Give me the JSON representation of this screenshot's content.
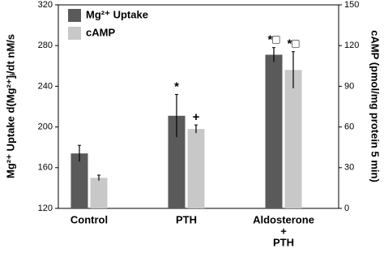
{
  "chart_data": {
    "type": "bar",
    "categories": [
      [
        "Control"
      ],
      [
        "PTH"
      ],
      [
        "Aldosterone",
        "+",
        "PTH"
      ]
    ],
    "series": [
      {
        "name": "Mg²⁺ Uptake",
        "color": "#5a5a5a",
        "axis": "y",
        "values": [
          174,
          211,
          271
        ],
        "errors": [
          8,
          21,
          7
        ],
        "annotations": [
          null,
          "*",
          "*□"
        ]
      },
      {
        "name": "cAMP",
        "color": "#c8c8c8",
        "axis": "y2",
        "values": [
          22.5,
          58.5,
          102
        ],
        "errors": [
          2,
          3,
          13.5
        ],
        "annotations": [
          null,
          "+",
          "*□"
        ]
      }
    ],
    "ylabel": "Mg²⁺ Uptake d(Mg²⁺]ᵢ/dt nM/s",
    "y2label": "cAMP (pmol/mg protein 5 min)",
    "ylim": [
      120,
      320
    ],
    "yticks": [
      120,
      160,
      200,
      240,
      280,
      320
    ],
    "y2lim": [
      0,
      150
    ],
    "y2ticks": [
      0,
      30,
      60,
      90,
      120,
      150
    ],
    "legend": "upper-left"
  }
}
